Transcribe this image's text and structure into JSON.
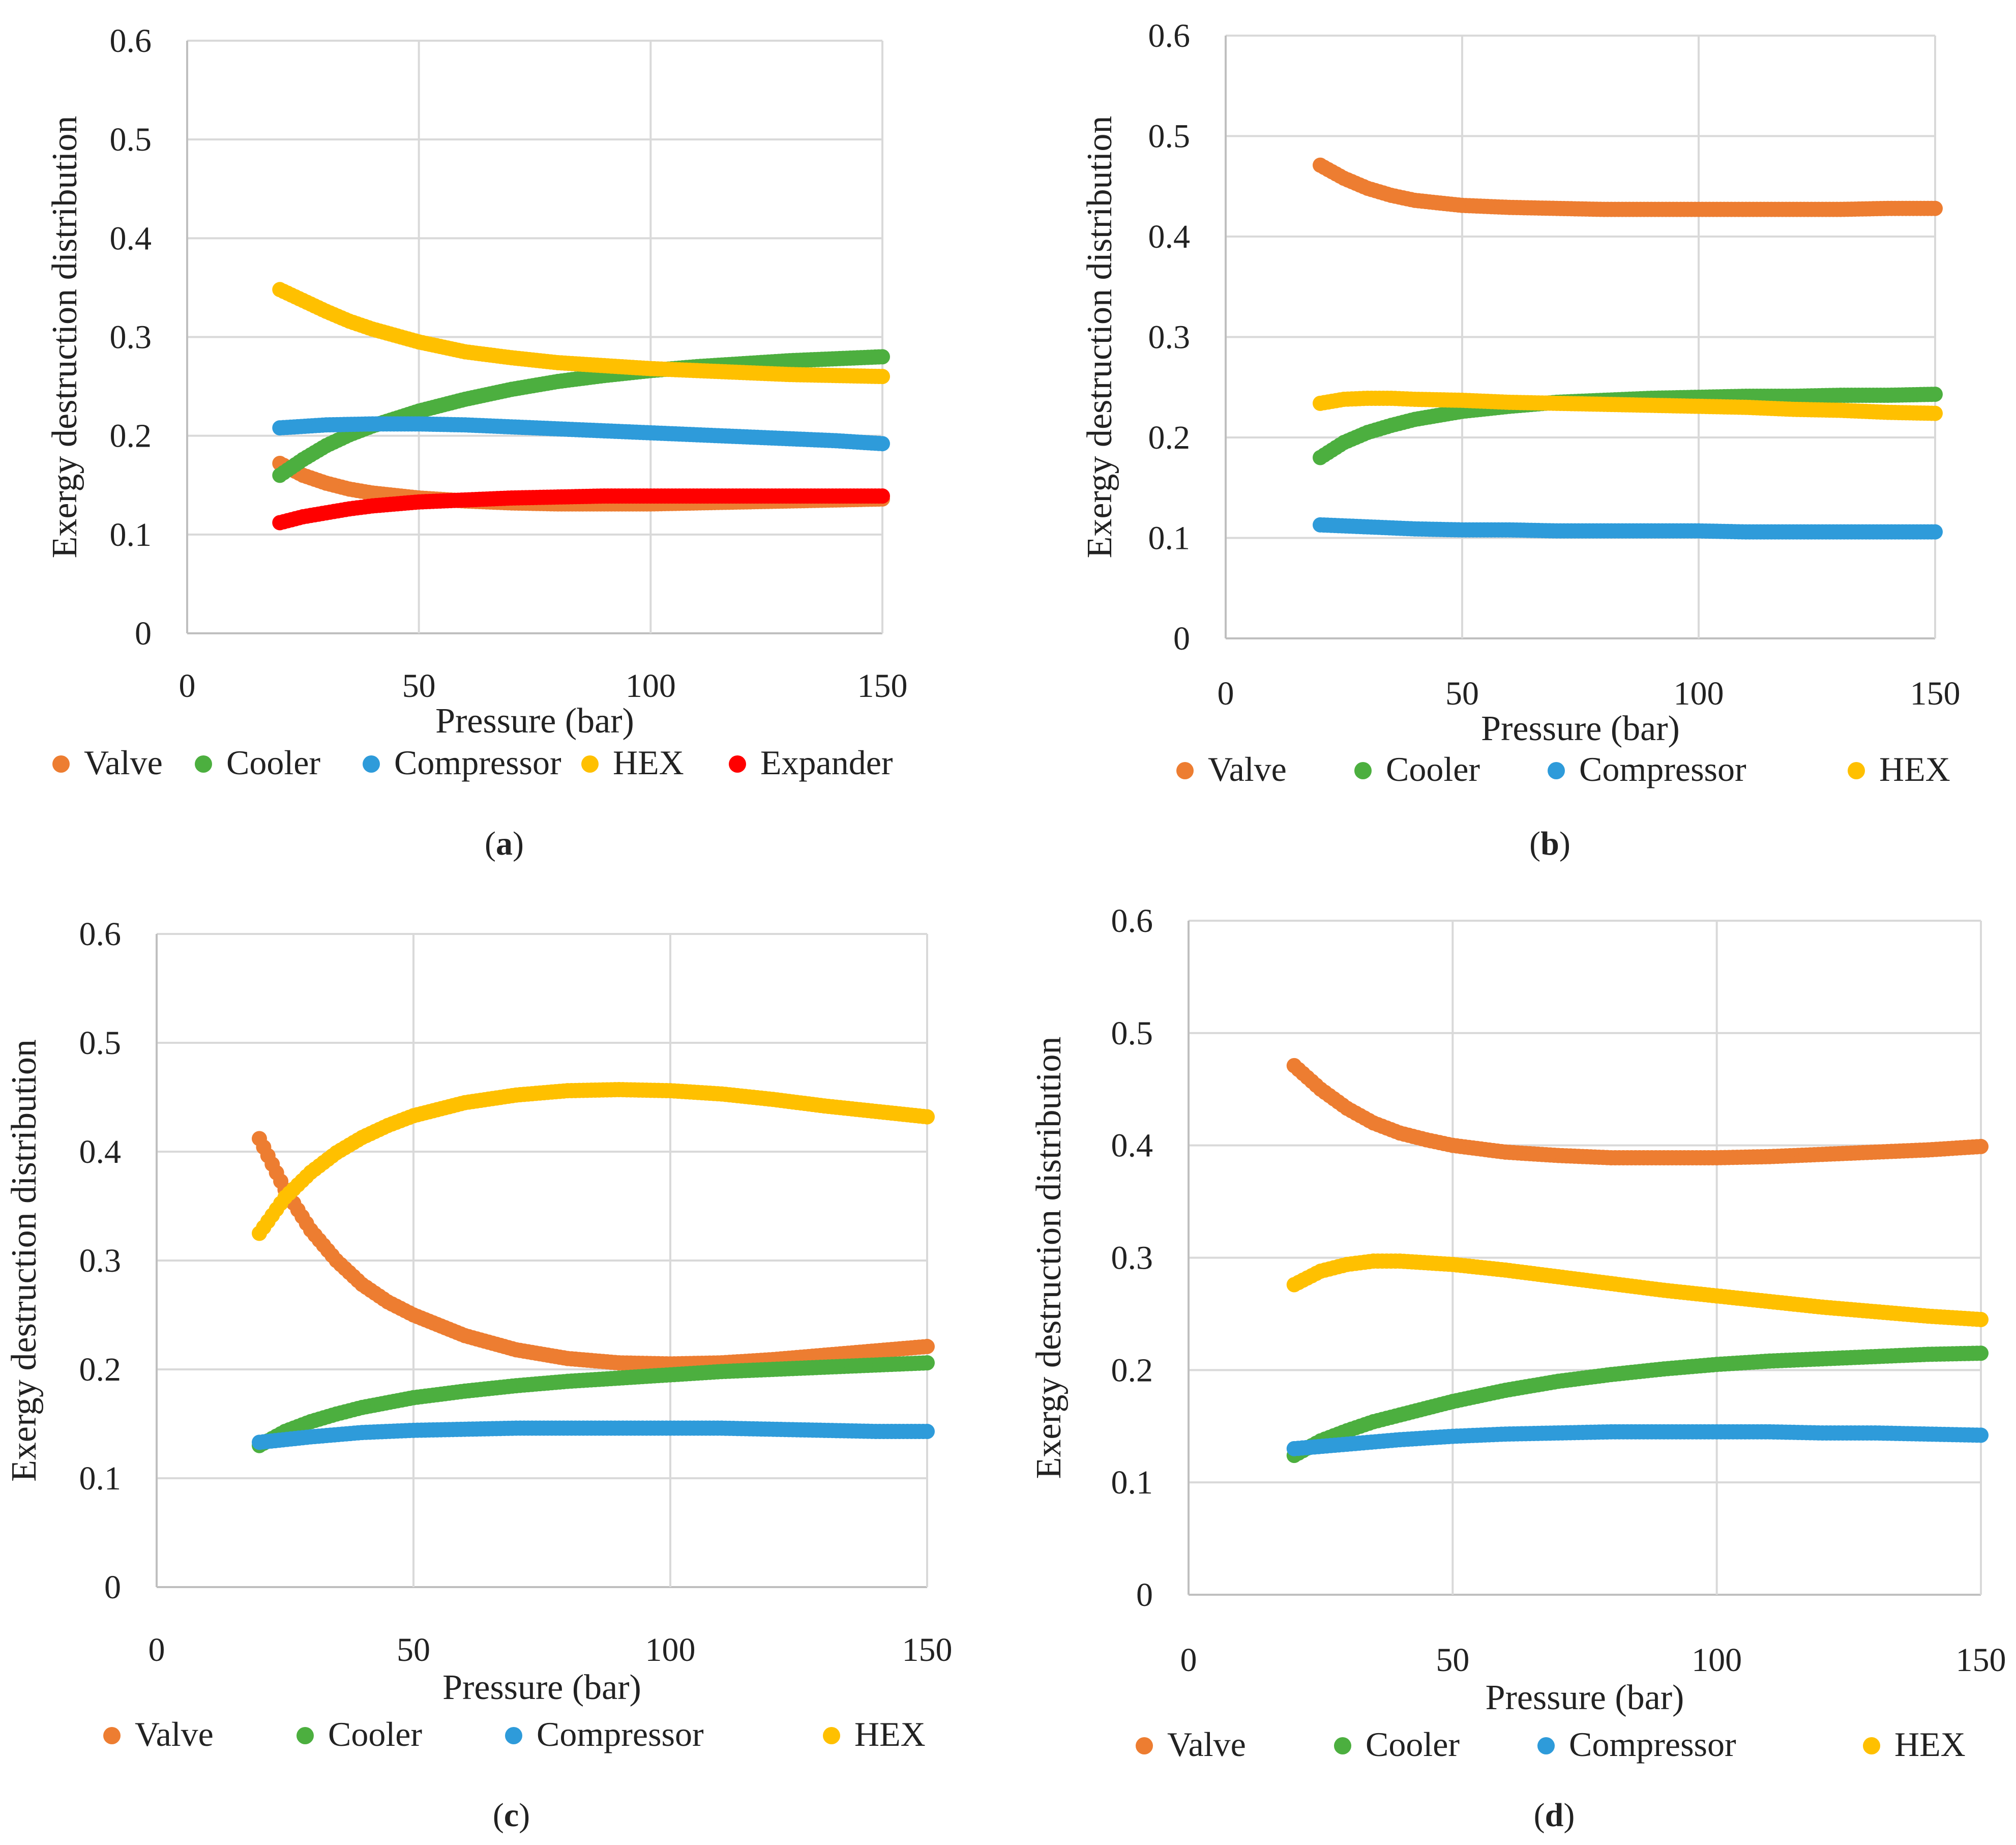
{
  "figure": {
    "x_label": "Pressure (bar)",
    "y_label": "Exergy destruction distribution"
  },
  "colors": {
    "Valve": "#ED7D31",
    "Cooler": "#4CAF3F",
    "Compressor": "#2E9BDA",
    "HEX": "#FFC000",
    "Expander": "#FF0000",
    "grid": "#d9d9d9",
    "axis": "#bfbfbf"
  },
  "chart_data": [
    {
      "panel": "(a)",
      "panel_letter": "a",
      "type": "scatter",
      "title": "",
      "xlabel": "Pressure (bar)",
      "ylabel": "Exergy destruction distribution",
      "xlim": [
        0,
        150
      ],
      "ylim": [
        0,
        0.6
      ],
      "xticks": [
        "0",
        "50",
        "100",
        "150"
      ],
      "yticks": [
        "0",
        "0.1",
        "0.2",
        "0.3",
        "0.4",
        "0.5",
        "0.6"
      ],
      "legend": "bottom",
      "series": [
        {
          "name": "Valve",
          "x": [
            20,
            25,
            30,
            35,
            40,
            50,
            60,
            70,
            80,
            90,
            100,
            110,
            120,
            130,
            140,
            150
          ],
          "values": [
            0.172,
            0.16,
            0.152,
            0.146,
            0.142,
            0.137,
            0.134,
            0.132,
            0.131,
            0.131,
            0.131,
            0.132,
            0.133,
            0.134,
            0.135,
            0.136
          ]
        },
        {
          "name": "Cooler",
          "x": [
            20,
            25,
            30,
            35,
            40,
            50,
            60,
            70,
            80,
            90,
            100,
            110,
            120,
            130,
            140,
            150
          ],
          "values": [
            0.16,
            0.176,
            0.19,
            0.201,
            0.21,
            0.225,
            0.237,
            0.247,
            0.255,
            0.261,
            0.266,
            0.27,
            0.273,
            0.276,
            0.278,
            0.28
          ]
        },
        {
          "name": "Compressor",
          "x": [
            20,
            30,
            40,
            50,
            60,
            70,
            80,
            90,
            100,
            110,
            120,
            130,
            140,
            150
          ],
          "values": [
            0.208,
            0.211,
            0.212,
            0.212,
            0.211,
            0.209,
            0.207,
            0.205,
            0.203,
            0.201,
            0.199,
            0.197,
            0.195,
            0.192
          ]
        },
        {
          "name": "HEX",
          "x": [
            20,
            25,
            30,
            35,
            40,
            50,
            60,
            70,
            80,
            90,
            100,
            110,
            120,
            130,
            140,
            150
          ],
          "values": [
            0.348,
            0.337,
            0.326,
            0.316,
            0.308,
            0.295,
            0.285,
            0.279,
            0.274,
            0.271,
            0.268,
            0.266,
            0.264,
            0.262,
            0.261,
            0.26
          ]
        },
        {
          "name": "Expander",
          "x": [
            20,
            25,
            30,
            35,
            40,
            50,
            60,
            70,
            80,
            90,
            100,
            110,
            120,
            130,
            140,
            150
          ],
          "values": [
            0.112,
            0.118,
            0.122,
            0.126,
            0.129,
            0.133,
            0.135,
            0.137,
            0.138,
            0.139,
            0.139,
            0.139,
            0.139,
            0.139,
            0.139,
            0.139
          ]
        }
      ]
    },
    {
      "panel": "(b)",
      "panel_letter": "b",
      "type": "scatter",
      "title": "",
      "xlabel": "Pressure (bar)",
      "ylabel": "Exergy destruction distribution",
      "xlim": [
        0,
        150
      ],
      "ylim": [
        0,
        0.6
      ],
      "xticks": [
        "0",
        "50",
        "100",
        "150"
      ],
      "yticks": [
        "0",
        "0.1",
        "0.2",
        "0.3",
        "0.4",
        "0.5",
        "0.6"
      ],
      "legend": "bottom",
      "series": [
        {
          "name": "Valve",
          "x": [
            20,
            25,
            30,
            35,
            40,
            50,
            60,
            70,
            80,
            90,
            100,
            110,
            120,
            130,
            140,
            150
          ],
          "values": [
            0.471,
            0.458,
            0.448,
            0.441,
            0.436,
            0.431,
            0.429,
            0.428,
            0.427,
            0.427,
            0.427,
            0.427,
            0.427,
            0.427,
            0.428,
            0.428
          ]
        },
        {
          "name": "Cooler",
          "x": [
            20,
            25,
            30,
            35,
            40,
            50,
            60,
            70,
            80,
            90,
            100,
            110,
            120,
            130,
            140,
            150
          ],
          "values": [
            0.18,
            0.195,
            0.205,
            0.212,
            0.218,
            0.226,
            0.231,
            0.235,
            0.237,
            0.239,
            0.24,
            0.241,
            0.241,
            0.242,
            0.242,
            0.243
          ]
        },
        {
          "name": "Compressor",
          "x": [
            20,
            30,
            40,
            50,
            60,
            70,
            80,
            90,
            100,
            110,
            120,
            130,
            140,
            150
          ],
          "values": [
            0.113,
            0.111,
            0.109,
            0.108,
            0.108,
            0.107,
            0.107,
            0.107,
            0.107,
            0.106,
            0.106,
            0.106,
            0.106,
            0.106
          ]
        },
        {
          "name": "HEX",
          "x": [
            20,
            25,
            30,
            35,
            40,
            50,
            60,
            70,
            80,
            90,
            100,
            110,
            120,
            130,
            140,
            150
          ],
          "values": [
            0.234,
            0.238,
            0.239,
            0.239,
            0.238,
            0.237,
            0.235,
            0.234,
            0.233,
            0.232,
            0.231,
            0.23,
            0.228,
            0.227,
            0.225,
            0.224
          ]
        }
      ]
    },
    {
      "panel": "(c)",
      "panel_letter": "c",
      "type": "scatter",
      "title": "",
      "xlabel": "Pressure (bar)",
      "ylabel": "Exergy destruction distribution",
      "xlim": [
        0,
        150
      ],
      "ylim": [
        0,
        0.6
      ],
      "xticks": [
        "0",
        "50",
        "100",
        "150"
      ],
      "yticks": [
        "0",
        "0.1",
        "0.2",
        "0.3",
        "0.4",
        "0.5",
        "0.6"
      ],
      "legend": "bottom",
      "series": [
        {
          "name": "Valve",
          "x": [
            20,
            25,
            30,
            35,
            40,
            45,
            50,
            60,
            70,
            80,
            90,
            100,
            110,
            120,
            130,
            140,
            150
          ],
          "values": [
            0.412,
            0.365,
            0.328,
            0.3,
            0.278,
            0.262,
            0.25,
            0.231,
            0.218,
            0.21,
            0.206,
            0.205,
            0.206,
            0.209,
            0.213,
            0.217,
            0.221
          ]
        },
        {
          "name": "Cooler",
          "x": [
            20,
            25,
            30,
            35,
            40,
            50,
            60,
            70,
            80,
            90,
            100,
            110,
            120,
            130,
            140,
            150
          ],
          "values": [
            0.13,
            0.143,
            0.152,
            0.159,
            0.165,
            0.174,
            0.18,
            0.185,
            0.189,
            0.192,
            0.195,
            0.198,
            0.2,
            0.202,
            0.204,
            0.206
          ]
        },
        {
          "name": "Compressor",
          "x": [
            20,
            30,
            40,
            50,
            60,
            70,
            80,
            90,
            100,
            110,
            120,
            130,
            140,
            150
          ],
          "values": [
            0.133,
            0.138,
            0.142,
            0.144,
            0.145,
            0.146,
            0.146,
            0.146,
            0.146,
            0.146,
            0.145,
            0.144,
            0.143,
            0.143
          ]
        },
        {
          "name": "HEX",
          "x": [
            20,
            25,
            30,
            35,
            40,
            45,
            50,
            60,
            70,
            80,
            90,
            100,
            110,
            120,
            130,
            140,
            150
          ],
          "values": [
            0.325,
            0.358,
            0.381,
            0.399,
            0.413,
            0.424,
            0.433,
            0.445,
            0.452,
            0.456,
            0.457,
            0.456,
            0.453,
            0.448,
            0.442,
            0.437,
            0.432
          ]
        }
      ]
    },
    {
      "panel": "(d)",
      "panel_letter": "d",
      "type": "scatter",
      "title": "",
      "xlabel": "Pressure (bar)",
      "ylabel": "Exergy destruction distribution",
      "xlim": [
        0,
        150
      ],
      "ylim": [
        0,
        0.6
      ],
      "xticks": [
        "0",
        "50",
        "100",
        "150"
      ],
      "yticks": [
        "0",
        "0.1",
        "0.2",
        "0.3",
        "0.4",
        "0.5",
        "0.6"
      ],
      "legend": "bottom",
      "series": [
        {
          "name": "Valve",
          "x": [
            20,
            25,
            30,
            35,
            40,
            45,
            50,
            60,
            70,
            80,
            90,
            100,
            110,
            120,
            130,
            140,
            150
          ],
          "values": [
            0.471,
            0.45,
            0.433,
            0.42,
            0.411,
            0.405,
            0.4,
            0.394,
            0.391,
            0.389,
            0.389,
            0.389,
            0.39,
            0.392,
            0.394,
            0.396,
            0.399
          ]
        },
        {
          "name": "Cooler",
          "x": [
            20,
            25,
            30,
            35,
            40,
            50,
            60,
            70,
            80,
            90,
            100,
            110,
            120,
            130,
            140,
            150
          ],
          "values": [
            0.124,
            0.137,
            0.146,
            0.154,
            0.16,
            0.172,
            0.182,
            0.19,
            0.196,
            0.201,
            0.205,
            0.208,
            0.21,
            0.212,
            0.214,
            0.215
          ]
        },
        {
          "name": "Compressor",
          "x": [
            20,
            30,
            40,
            50,
            60,
            70,
            80,
            90,
            100,
            110,
            120,
            130,
            140,
            150
          ],
          "values": [
            0.13,
            0.134,
            0.138,
            0.141,
            0.143,
            0.144,
            0.145,
            0.145,
            0.145,
            0.145,
            0.144,
            0.144,
            0.143,
            0.142
          ]
        },
        {
          "name": "HEX",
          "x": [
            20,
            25,
            30,
            35,
            40,
            50,
            60,
            70,
            80,
            90,
            100,
            110,
            120,
            130,
            140,
            150
          ],
          "values": [
            0.276,
            0.288,
            0.294,
            0.297,
            0.297,
            0.294,
            0.289,
            0.283,
            0.277,
            0.271,
            0.266,
            0.261,
            0.256,
            0.252,
            0.248,
            0.245
          ]
        }
      ]
    }
  ]
}
